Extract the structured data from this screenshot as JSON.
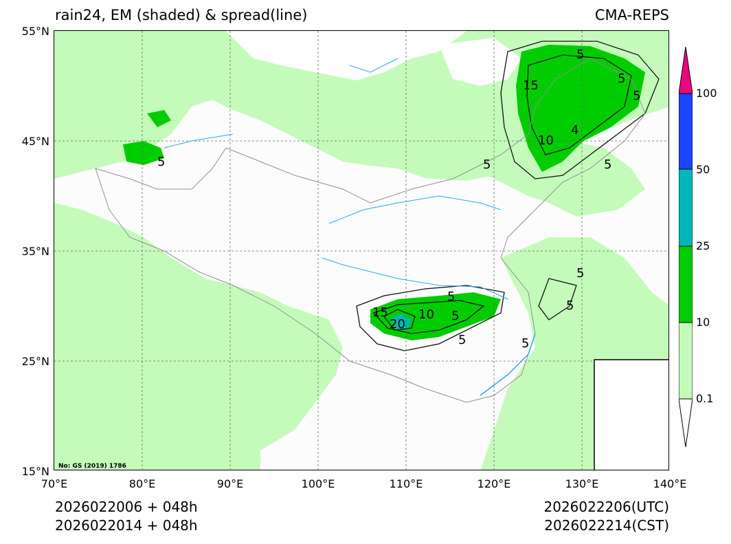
{
  "header": {
    "title_left": "rain24, EM (shaded) & spread(line)",
    "title_right": "CMA-REPS"
  },
  "map": {
    "lat_labels": [
      "55°N",
      "45°N",
      "35°N",
      "25°N",
      "15°N"
    ],
    "lon_labels": [
      "70°E",
      "80°E",
      "90°E",
      "100°E",
      "110°E",
      "120°E",
      "130°E",
      "140°E"
    ],
    "watermark": "No: GS (2019) 1786",
    "contour_labels": [
      "15",
      "10",
      "5",
      "5",
      "5",
      "5",
      "4",
      "5",
      "5",
      "5",
      "15",
      "20",
      "10",
      "5",
      "5",
      "5",
      "5",
      "5"
    ],
    "colors": {
      "light_green": "#c4fbbb",
      "green": "#00cc00",
      "cyan": "#00b8b8",
      "blue": "#1a44ff",
      "magenta": "#e8087e",
      "river": "#29a8f0",
      "border": "#909090"
    }
  },
  "colorbar": {
    "labels": [
      "100",
      "50",
      "25",
      "10",
      "0.1"
    ]
  },
  "footer": {
    "init_utc": "2026022006  +  048h",
    "init_cst": "2026022014  +  048h",
    "valid_utc": "2026022206(UTC)",
    "valid_cst": "2026022214(CST)"
  }
}
